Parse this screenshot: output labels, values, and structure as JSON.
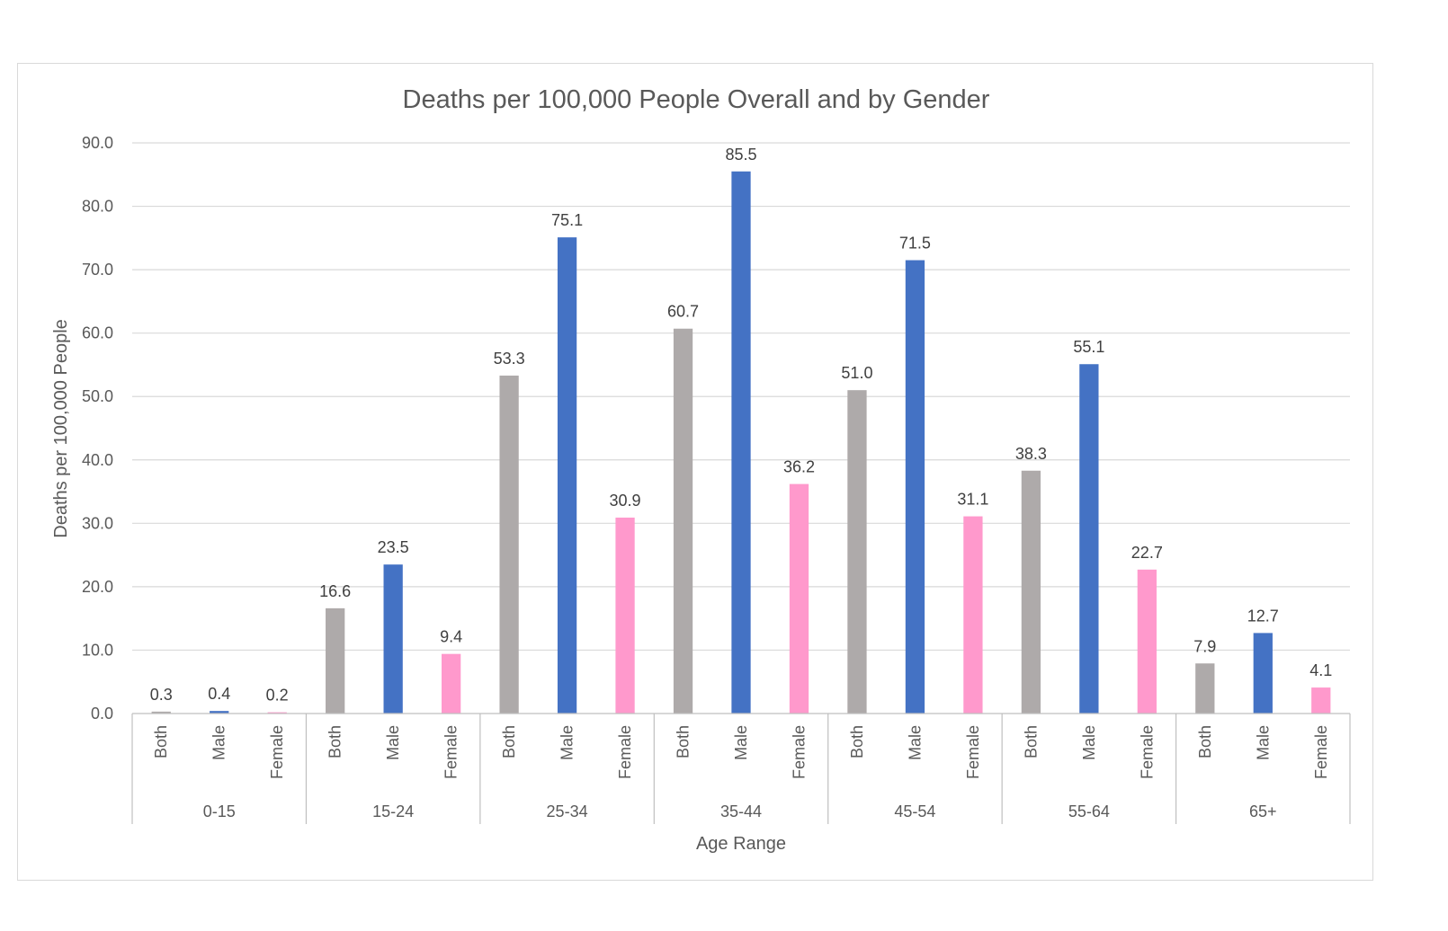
{
  "chart_data": {
    "type": "bar",
    "title": "Deaths per 100,000 People Overall and by Gender",
    "xlabel": "Age Range",
    "ylabel": "Deaths per 100,000 People",
    "ylim": [
      0,
      90
    ],
    "yticks": [
      "0.0",
      "10.0",
      "20.0",
      "30.0",
      "40.0",
      "50.0",
      "60.0",
      "70.0",
      "80.0",
      "90.0"
    ],
    "grid": true,
    "groups": [
      "0-15",
      "15-24",
      "25-34",
      "35-44",
      "45-54",
      "55-64",
      "65+"
    ],
    "subcategories": [
      "Both",
      "Male",
      "Female"
    ],
    "colors": {
      "Both": "#aeaaaa",
      "Male": "#4472c4",
      "Female": "#ff99cc"
    },
    "values": [
      [
        0.3,
        0.4,
        0.2
      ],
      [
        16.6,
        23.5,
        9.4
      ],
      [
        53.3,
        75.1,
        30.9
      ],
      [
        60.7,
        85.5,
        36.2
      ],
      [
        51.0,
        71.5,
        31.1
      ],
      [
        38.3,
        55.1,
        22.7
      ],
      [
        7.9,
        12.7,
        4.1
      ]
    ]
  }
}
